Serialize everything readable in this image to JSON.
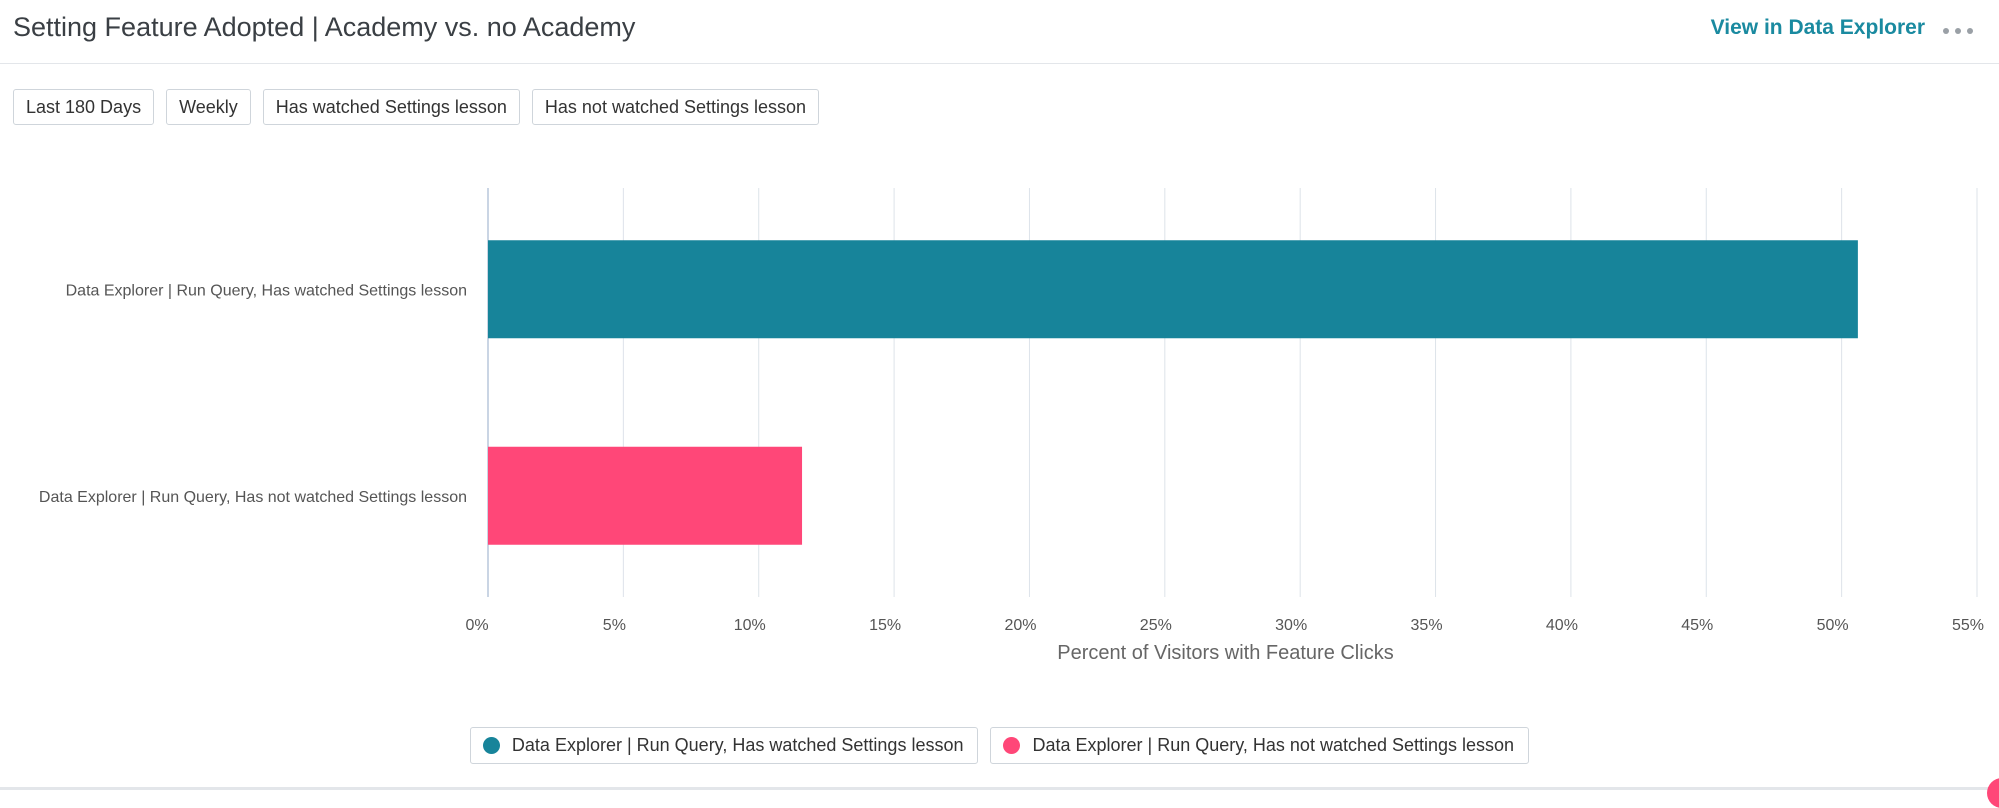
{
  "header": {
    "title": "Setting Feature Adopted | Academy vs. no Academy",
    "view_link": "View in Data Explorer"
  },
  "filters": [
    "Last 180 Days",
    "Weekly",
    "Has watched Settings lesson",
    "Has not watched Settings lesson"
  ],
  "colors": {
    "accent": "#1a8aa0",
    "series1": "#17849a",
    "series2": "#ff4778"
  },
  "chart_data": {
    "type": "bar",
    "orientation": "horizontal",
    "title": "",
    "xlabel": "Percent of Visitors with Feature Clicks",
    "ylabel": "",
    "categories": [
      "Data Explorer | Run Query, Has watched Settings lesson",
      "Data Explorer | Run Query, Has not watched Settings lesson"
    ],
    "values": [
      50.6,
      11.6
    ],
    "xlim": [
      0,
      55
    ],
    "xticks": [
      0,
      5,
      10,
      15,
      20,
      25,
      30,
      35,
      40,
      45,
      50,
      55
    ],
    "tick_suffix": "%",
    "grid": true,
    "legend": {
      "position": "bottom",
      "entries": [
        "Data Explorer | Run Query, Has watched Settings lesson",
        "Data Explorer | Run Query, Has not watched Settings lesson"
      ]
    }
  }
}
